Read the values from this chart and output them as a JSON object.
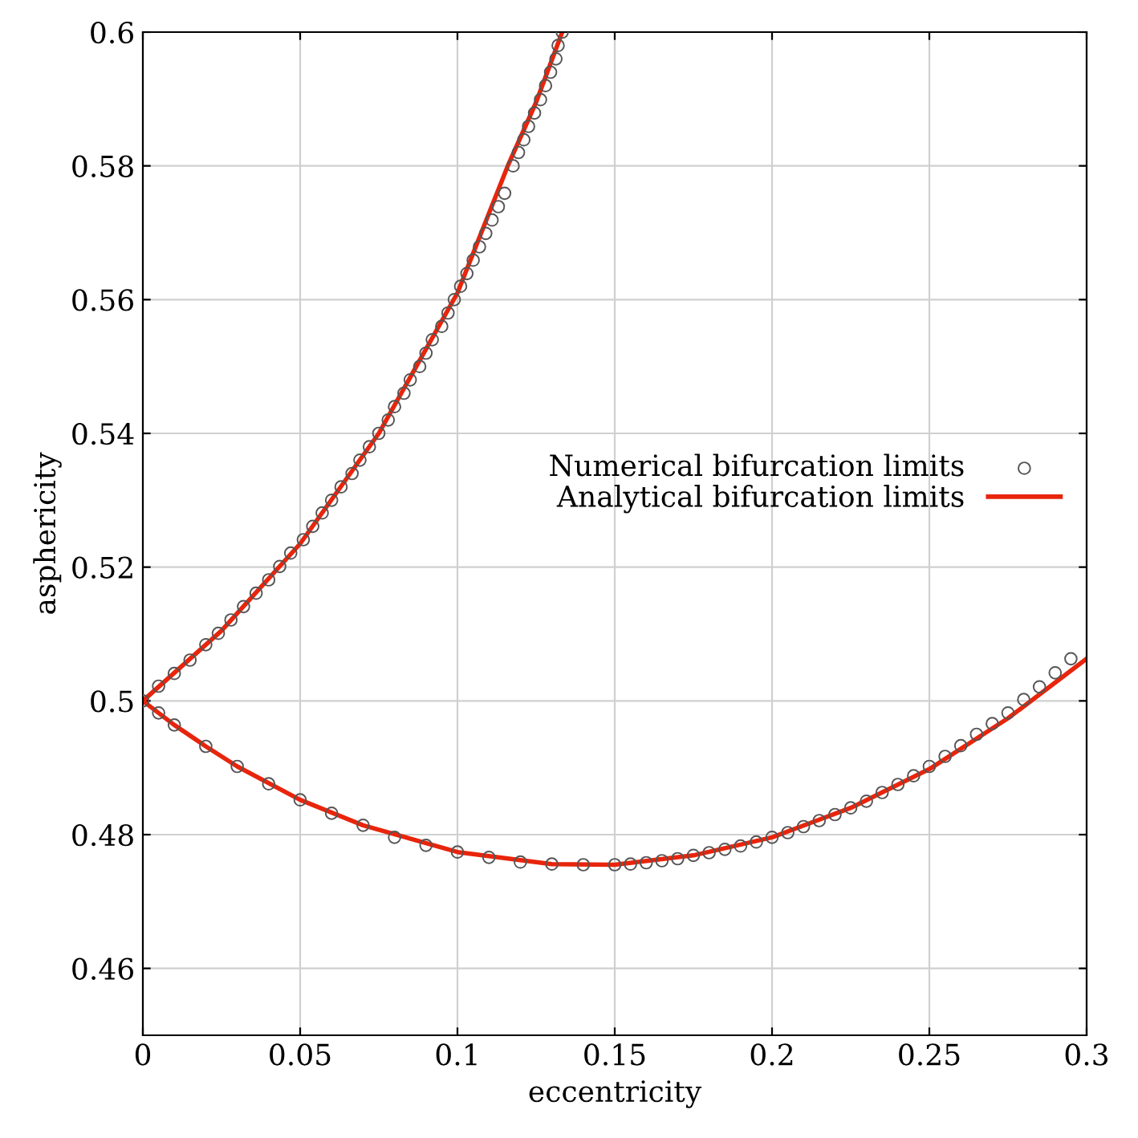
{
  "chart_data": {
    "type": "scatter",
    "xlabel": "eccentricity",
    "ylabel": "asphericity",
    "xlim": [
      0,
      0.3
    ],
    "ylim": [
      0.45,
      0.6
    ],
    "xticks": [
      0,
      0.05,
      0.1,
      0.15,
      0.2,
      0.25,
      0.3
    ],
    "yticks": [
      0.46,
      0.48,
      0.5,
      0.52,
      0.54,
      0.56,
      0.58,
      0.6
    ],
    "grid": true,
    "legend": "right",
    "series": [
      {
        "name": "Numerical bifurcation limits",
        "marker": "circle",
        "color": "#555555",
        "x": [
          0,
          0.005,
          0.01,
          0.015,
          0.02,
          0.024,
          0.028,
          0.032,
          0.036,
          0.04,
          0.0435,
          0.047,
          0.051,
          0.054,
          0.057,
          0.06,
          0.063,
          0.0665,
          0.069,
          0.072,
          0.075,
          0.078,
          0.08,
          0.083,
          0.085,
          0.088,
          0.09,
          0.092,
          0.095,
          0.097,
          0.099,
          0.101,
          0.103,
          0.105,
          0.107,
          0.109,
          0.111,
          0.113,
          0.115,
          0.1177,
          0.1194,
          0.1211,
          0.1226,
          0.1245,
          0.1264,
          0.128,
          0.1296,
          0.1313,
          0.132,
          0.1333,
          0.005,
          0.01,
          0.02,
          0.03,
          0.04,
          0.05,
          0.06,
          0.07,
          0.08,
          0.09,
          0.1,
          0.11,
          0.12,
          0.13,
          0.14,
          0.15,
          0.155,
          0.16,
          0.165,
          0.17,
          0.175,
          0.18,
          0.185,
          0.19,
          0.195,
          0.2,
          0.205,
          0.21,
          0.215,
          0.22,
          0.225,
          0.23,
          0.235,
          0.24,
          0.245,
          0.25,
          0.255,
          0.26,
          0.265,
          0.27,
          0.275,
          0.28,
          0.285,
          0.29,
          0.295
        ],
        "values": [
          0.5,
          0.5022,
          0.5041,
          0.5061,
          0.5084,
          0.5101,
          0.5121,
          0.5141,
          0.5161,
          0.5181,
          0.5201,
          0.5221,
          0.5241,
          0.5261,
          0.5281,
          0.53,
          0.532,
          0.534,
          0.536,
          0.538,
          0.54,
          0.542,
          0.544,
          0.546,
          0.548,
          0.55,
          0.552,
          0.554,
          0.556,
          0.558,
          0.56,
          0.562,
          0.5639,
          0.5659,
          0.5679,
          0.5699,
          0.5719,
          0.5739,
          0.5759,
          0.58,
          0.582,
          0.5839,
          0.5859,
          0.5879,
          0.5899,
          0.592,
          0.594,
          0.596,
          0.598,
          0.6,
          0.4982,
          0.4964,
          0.4932,
          0.4902,
          0.4876,
          0.4852,
          0.4832,
          0.4814,
          0.4796,
          0.4784,
          0.4774,
          0.4766,
          0.4759,
          0.4756,
          0.4755,
          0.4755,
          0.4756,
          0.4758,
          0.4761,
          0.4764,
          0.4769,
          0.4773,
          0.4778,
          0.4783,
          0.4789,
          0.4796,
          0.4803,
          0.4812,
          0.4821,
          0.483,
          0.484,
          0.485,
          0.4863,
          0.4875,
          0.4888,
          0.4902,
          0.4917,
          0.4933,
          0.495,
          0.4966,
          0.4982,
          0.5002,
          0.5021,
          0.5042,
          0.5063
        ]
      },
      {
        "name": "Analytical bifurcation limits",
        "type": "line",
        "marker": "none",
        "line_style": "solid",
        "color": "#e8250c",
        "x": [
          0.1333,
          0.125,
          0.116,
          0.1,
          0.075,
          0.05,
          0.025,
          0,
          0.01,
          0.02,
          0.03,
          0.05,
          0.07,
          0.1,
          0.13,
          0.15,
          0.175,
          0.2,
          0.225,
          0.25,
          0.275,
          0.3
        ],
        "values": [
          0.6,
          0.5895,
          0.58,
          0.561,
          0.54,
          0.5235,
          0.5105,
          0.5,
          0.4964,
          0.4932,
          0.4902,
          0.4852,
          0.4814,
          0.4774,
          0.4756,
          0.4755,
          0.4769,
          0.4796,
          0.484,
          0.4898,
          0.4974,
          0.5063
        ]
      }
    ]
  }
}
